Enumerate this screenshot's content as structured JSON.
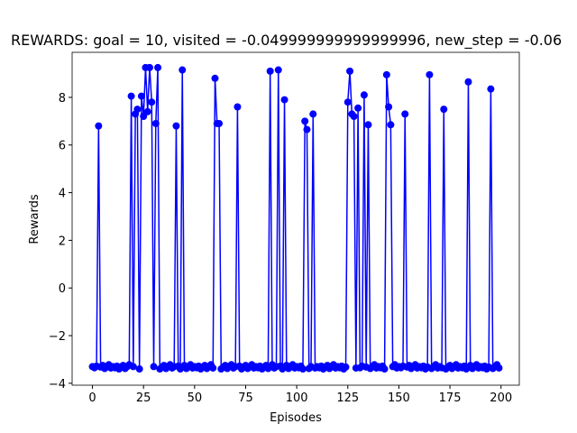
{
  "chart_data": {
    "type": "line",
    "title": "REWARDS: goal = 10, visited = -0.049999999999999996, new_step = -0.06",
    "xlabel": "Episodes",
    "ylabel": "Rewards",
    "xlim": [
      -9.95,
      208.95
    ],
    "ylim": [
      -4.08,
      9.89
    ],
    "xticks": [
      0,
      25,
      50,
      75,
      100,
      125,
      150,
      175,
      200
    ],
    "yticks": [
      {
        "value": -4,
        "label": "−4"
      },
      {
        "value": -2,
        "label": "−2"
      },
      0,
      2,
      4,
      6,
      8
    ],
    "x": [
      0,
      1,
      2,
      3,
      4,
      5,
      6,
      7,
      8,
      9,
      10,
      11,
      12,
      13,
      14,
      15,
      16,
      17,
      18,
      19,
      20,
      21,
      22,
      23,
      24,
      25,
      26,
      27,
      28,
      29,
      30,
      31,
      32,
      33,
      34,
      35,
      36,
      37,
      38,
      39,
      40,
      41,
      42,
      43,
      44,
      45,
      46,
      47,
      48,
      49,
      50,
      51,
      52,
      53,
      54,
      55,
      56,
      57,
      58,
      59,
      60,
      61,
      62,
      63,
      64,
      65,
      66,
      67,
      68,
      69,
      70,
      71,
      72,
      73,
      74,
      75,
      76,
      77,
      78,
      79,
      80,
      81,
      82,
      83,
      84,
      85,
      86,
      87,
      88,
      89,
      90,
      91,
      92,
      93,
      94,
      95,
      96,
      97,
      98,
      99,
      100,
      101,
      102,
      103,
      104,
      105,
      106,
      107,
      108,
      109,
      110,
      111,
      112,
      113,
      114,
      115,
      116,
      117,
      118,
      119,
      120,
      121,
      122,
      123,
      124,
      125,
      126,
      127,
      128,
      129,
      130,
      131,
      132,
      133,
      134,
      135,
      136,
      137,
      138,
      139,
      140,
      141,
      142,
      143,
      144,
      145,
      146,
      147,
      148,
      149,
      150,
      151,
      152,
      153,
      154,
      155,
      156,
      157,
      158,
      159,
      160,
      161,
      162,
      163,
      164,
      165,
      166,
      167,
      168,
      169,
      170,
      171,
      172,
      173,
      174,
      175,
      176,
      177,
      178,
      179,
      180,
      181,
      182,
      183,
      184,
      185,
      186,
      187,
      188,
      189,
      190,
      191,
      192,
      193,
      194,
      195,
      196,
      197,
      198,
      199
    ],
    "series": [
      {
        "color": "#0000ff",
        "values": [
          -3.3,
          -3.35,
          -3.28,
          6.8,
          -3.32,
          -3.25,
          -3.38,
          -3.3,
          -3.22,
          -3.36,
          -3.3,
          -3.35,
          -3.28,
          -3.4,
          -3.32,
          -3.25,
          -3.38,
          -3.3,
          -3.22,
          8.05,
          -3.3,
          7.3,
          7.5,
          -3.4,
          8.05,
          7.2,
          9.25,
          7.4,
          9.25,
          7.8,
          -3.3,
          6.9,
          9.25,
          -3.4,
          -3.32,
          -3.25,
          -3.38,
          -3.3,
          -3.22,
          -3.36,
          -3.3,
          6.8,
          -3.28,
          -3.4,
          9.15,
          -3.25,
          -3.38,
          -3.3,
          -3.22,
          -3.36,
          -3.3,
          -3.35,
          -3.28,
          -3.4,
          -3.32,
          -3.25,
          -3.38,
          -3.3,
          -3.22,
          -3.36,
          8.8,
          6.9,
          6.9,
          -3.4,
          -3.32,
          -3.25,
          -3.38,
          -3.3,
          -3.22,
          -3.36,
          -3.3,
          7.6,
          -3.28,
          -3.4,
          -3.32,
          -3.25,
          -3.38,
          -3.3,
          -3.22,
          -3.36,
          -3.3,
          -3.35,
          -3.28,
          -3.4,
          -3.32,
          -3.25,
          -3.38,
          9.1,
          -3.22,
          -3.36,
          -3.3,
          9.15,
          -3.28,
          -3.4,
          7.9,
          -3.25,
          -3.38,
          -3.3,
          -3.22,
          -3.36,
          -3.3,
          -3.35,
          -3.28,
          -3.4,
          7.0,
          6.65,
          -3.38,
          -3.3,
          7.3,
          -3.36,
          -3.3,
          -3.35,
          -3.28,
          -3.4,
          -3.32,
          -3.25,
          -3.38,
          -3.3,
          -3.22,
          -3.36,
          -3.3,
          -3.35,
          -3.28,
          -3.4,
          -3.32,
          7.8,
          9.1,
          7.3,
          7.2,
          -3.36,
          7.55,
          -3.35,
          -3.28,
          8.1,
          -3.32,
          6.85,
          -3.38,
          -3.3,
          -3.22,
          -3.36,
          -3.3,
          -3.35,
          -3.28,
          -3.4,
          8.95,
          7.6,
          6.85,
          -3.3,
          -3.22,
          -3.36,
          -3.3,
          -3.35,
          -3.28,
          7.3,
          -3.32,
          -3.25,
          -3.38,
          -3.3,
          -3.22,
          -3.36,
          -3.3,
          -3.35,
          -3.28,
          -3.4,
          -3.32,
          8.95,
          -3.38,
          -3.3,
          -3.22,
          -3.36,
          -3.3,
          -3.35,
          7.5,
          -3.4,
          -3.32,
          -3.25,
          -3.38,
          -3.3,
          -3.22,
          -3.36,
          -3.3,
          -3.35,
          -3.28,
          -3.4,
          8.65,
          -3.25,
          -3.38,
          -3.3,
          -3.22,
          -3.36,
          -3.3,
          -3.35,
          -3.28,
          -3.4,
          -3.32,
          8.35,
          -3.38,
          -3.3,
          -3.22,
          -3.36
        ]
      }
    ],
    "marker": true
  }
}
